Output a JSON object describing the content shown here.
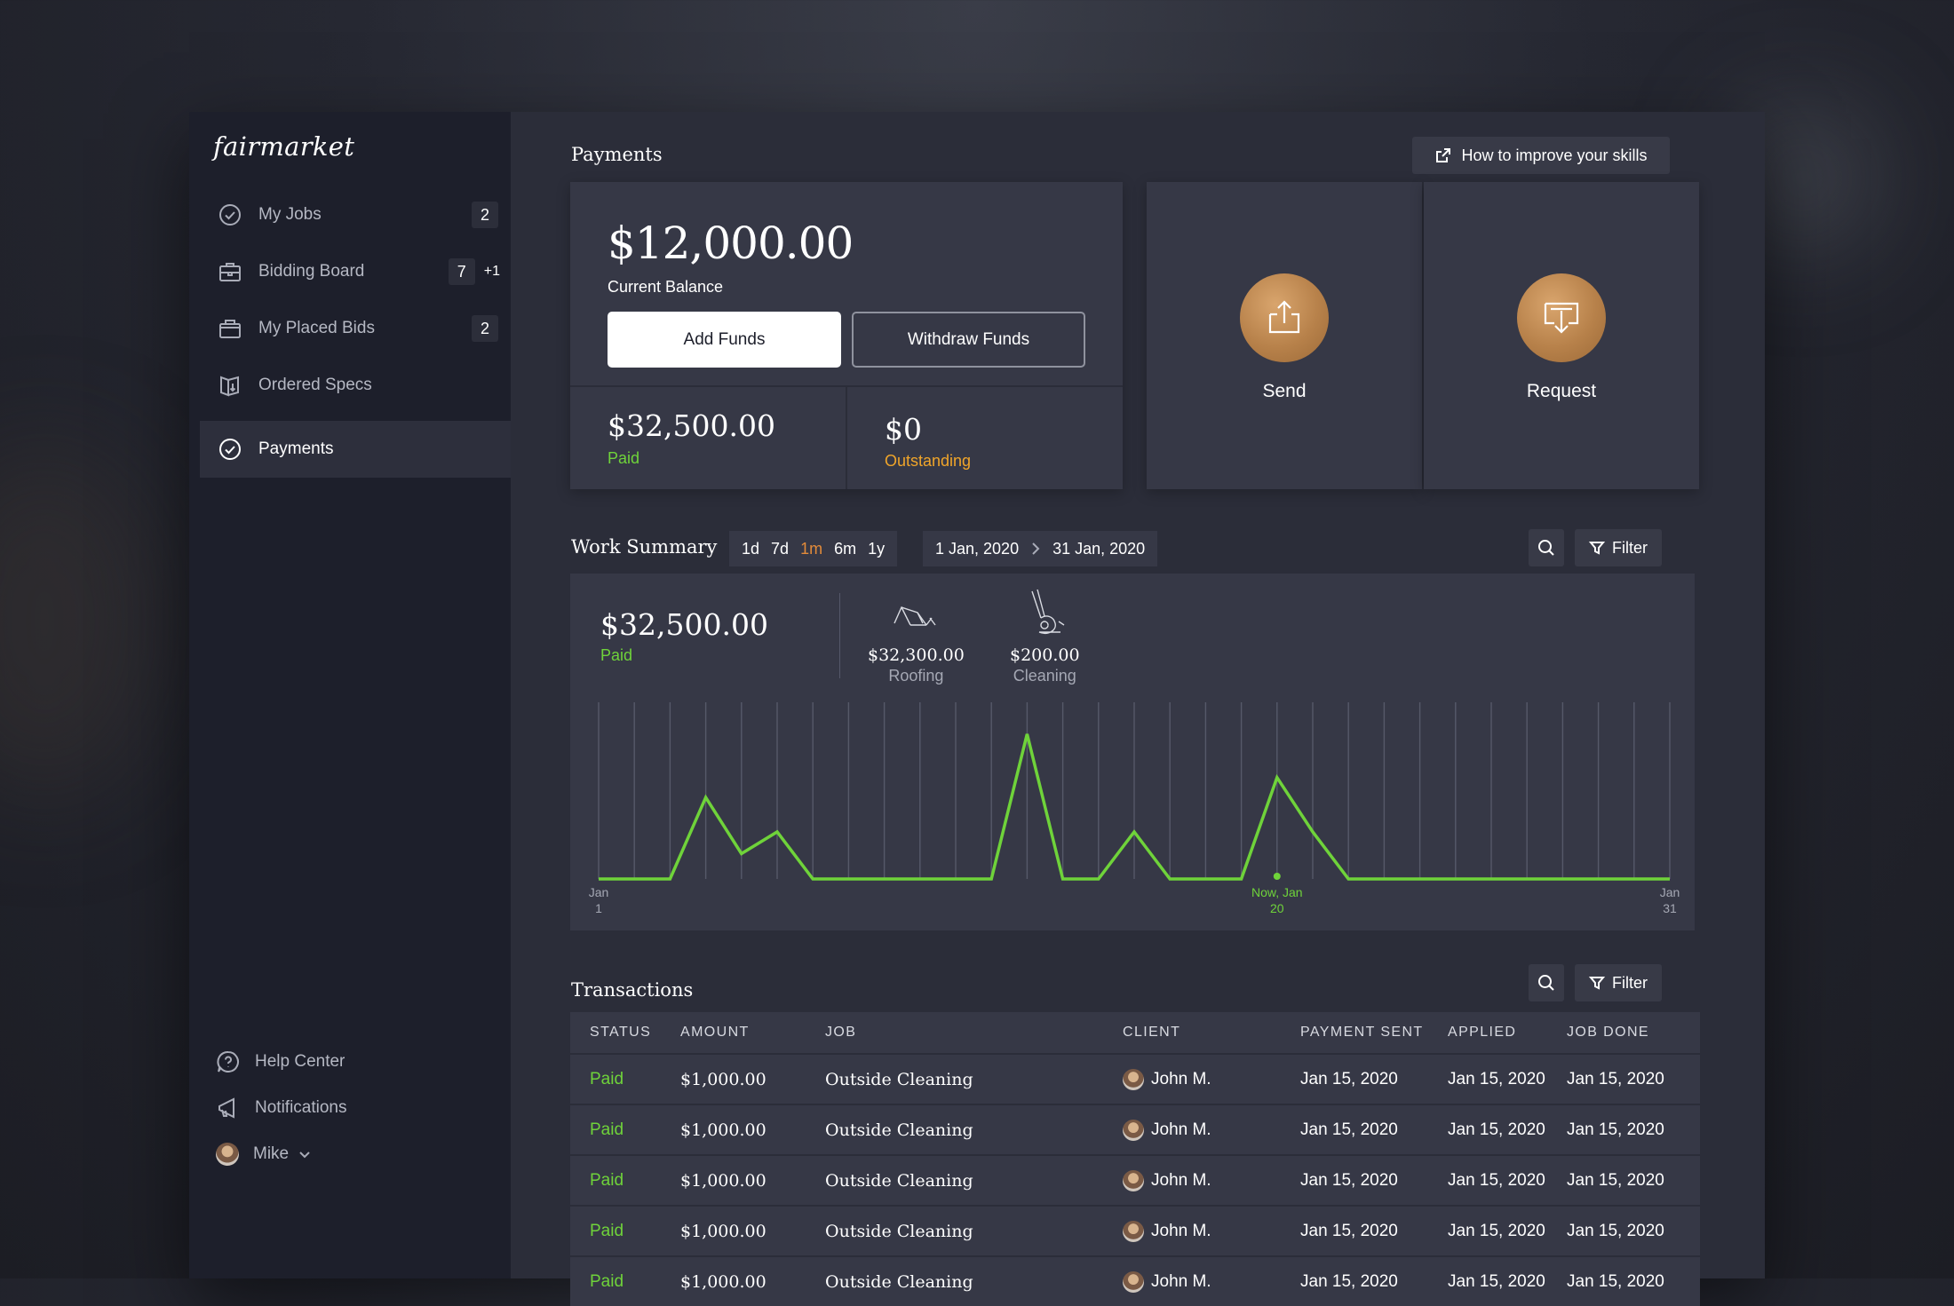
{
  "brand": "fairmarket",
  "sidebar": {
    "items": [
      {
        "label": "My Jobs",
        "badge": "2",
        "icon": "check-circle-icon"
      },
      {
        "label": "Bidding Board",
        "badge": "7",
        "badge_extra": "+1",
        "icon": "briefcase-icon"
      },
      {
        "label": "My Placed Bids",
        "badge": "2",
        "icon": "bag-icon"
      },
      {
        "label": "Ordered Specs",
        "icon": "book-download-icon"
      },
      {
        "label": "Payments",
        "icon": "check-circle-icon",
        "active": true
      }
    ],
    "bottom": {
      "help": "Help Center",
      "notifications": "Notifications",
      "user": "Mike"
    }
  },
  "header": {
    "title": "Payments",
    "help_link": "How to improve your skills"
  },
  "balance": {
    "amount": "$12,000.00",
    "label": "Current Balance",
    "add_funds": "Add Funds",
    "withdraw_funds": "Withdraw Funds",
    "paid_amount": "$32,500.00",
    "paid_label": "Paid",
    "outstanding_amount": "$0",
    "outstanding_label": "Outstanding"
  },
  "actions": {
    "send": "Send",
    "request": "Request"
  },
  "work_summary": {
    "title": "Work Summary",
    "ranges": [
      "1d",
      "7d",
      "1m",
      "6m",
      "1y"
    ],
    "selected_range": "1m",
    "date_from": "1 Jan, 2020",
    "date_to": "31 Jan, 2020",
    "filter": "Filter",
    "total": "$32,500.00",
    "total_label": "Paid",
    "categories": [
      {
        "amount": "$32,300.00",
        "label": "Roofing",
        "icon": "roof-icon"
      },
      {
        "amount": "$200.00",
        "label": "Cleaning",
        "icon": "vacuum-icon"
      }
    ]
  },
  "chart_data": {
    "type": "line",
    "x": [
      1,
      2,
      3,
      4,
      5,
      6,
      7,
      8,
      9,
      10,
      11,
      12,
      13,
      14,
      15,
      16,
      17,
      18,
      19,
      20,
      21,
      22,
      23,
      24,
      25,
      26,
      27,
      28,
      29,
      30,
      31
    ],
    "series": [
      {
        "values": [
          0,
          0,
          0,
          0.45,
          0.14,
          0.26,
          0,
          0,
          0,
          0,
          0,
          0,
          0.8,
          0,
          0,
          0.26,
          0,
          0,
          0,
          0.56,
          0.26,
          0,
          0,
          0,
          0,
          0,
          0,
          0,
          0,
          0,
          0
        ]
      }
    ],
    "ylim": [
      0,
      1
    ],
    "grid": true,
    "line_color": "#6fd33a",
    "tick_labels": [
      {
        "x": 1,
        "line1": "Jan",
        "line2": "1"
      },
      {
        "x": 20,
        "line1": "Now, Jan",
        "line2": "20",
        "highlight": true
      },
      {
        "x": 31,
        "line1": "Jan",
        "line2": "31"
      }
    ]
  },
  "transactions": {
    "title": "Transactions",
    "filter": "Filter",
    "columns": [
      "STATUS",
      "AMOUNT",
      "JOB",
      "CLIENT",
      "PAYMENT SENT",
      "APPLIED",
      "JOB DONE"
    ],
    "rows": [
      {
        "status": "Paid",
        "amount": "$1,000.00",
        "job": "Outside Cleaning",
        "client": "John M.",
        "sent": "Jan 15, 2020",
        "applied": "Jan 15, 2020",
        "done": "Jan 15, 2020"
      },
      {
        "status": "Paid",
        "amount": "$1,000.00",
        "job": "Outside Cleaning",
        "client": "John M.",
        "sent": "Jan 15, 2020",
        "applied": "Jan 15, 2020",
        "done": "Jan 15, 2020"
      },
      {
        "status": "Paid",
        "amount": "$1,000.00",
        "job": "Outside Cleaning",
        "client": "John M.",
        "sent": "Jan 15, 2020",
        "applied": "Jan 15, 2020",
        "done": "Jan 15, 2020"
      },
      {
        "status": "Paid",
        "amount": "$1,000.00",
        "job": "Outside Cleaning",
        "client": "John M.",
        "sent": "Jan 15, 2020",
        "applied": "Jan 15, 2020",
        "done": "Jan 15, 2020"
      },
      {
        "status": "Paid",
        "amount": "$1,000.00",
        "job": "Outside Cleaning",
        "client": "John M.",
        "sent": "Jan 15, 2020",
        "applied": "Jan 15, 2020",
        "done": "Jan 15, 2020"
      }
    ]
  },
  "colors": {
    "accent_green": "#6fd33a",
    "accent_orange": "#f0a52a",
    "action_gold": "#b7814a"
  }
}
